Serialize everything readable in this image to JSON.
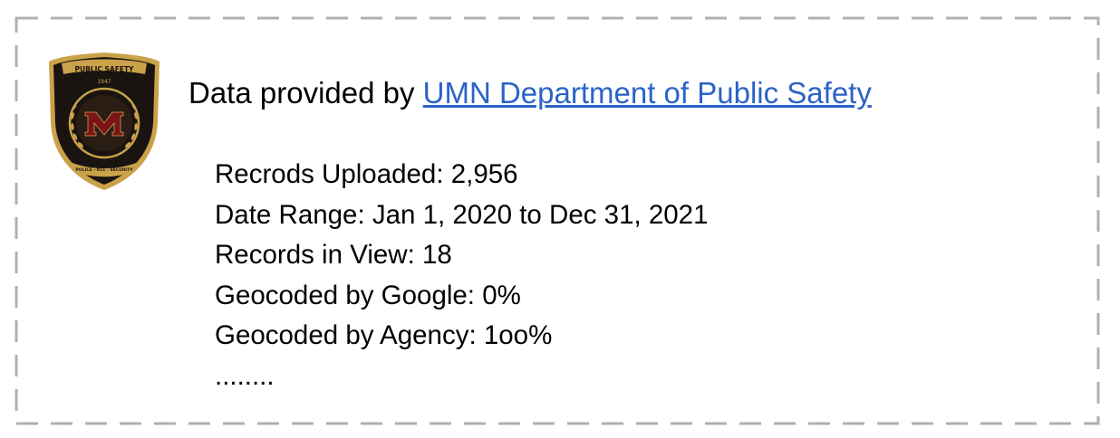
{
  "badge": {
    "top_text": "PUBLIC SAFETY",
    "year": "1947",
    "bottom_text": "POLICE · 911 · SECURITY",
    "emblem": "M",
    "colors": {
      "gold": "#c9a24a",
      "black": "#1a1410",
      "maroon": "#7a1418"
    }
  },
  "provider": {
    "prefix": "Data provided by",
    "link_text": "UMN Department of Public Safety",
    "link_color": "#2a63c7"
  },
  "stats": [
    {
      "text": "Recrods Uploaded: 2,956"
    },
    {
      "text": "Date Range: Jan 1, 2020 to Dec 31, 2021"
    },
    {
      "text": "Records in View: 18"
    },
    {
      "text": "Geocoded by Google: 0%"
    },
    {
      "text": "Geocoded by Agency: 1oo%"
    },
    {
      "text": "........"
    }
  ],
  "colors": {
    "dash_border": "#b0b0b0",
    "text": "#000000"
  }
}
